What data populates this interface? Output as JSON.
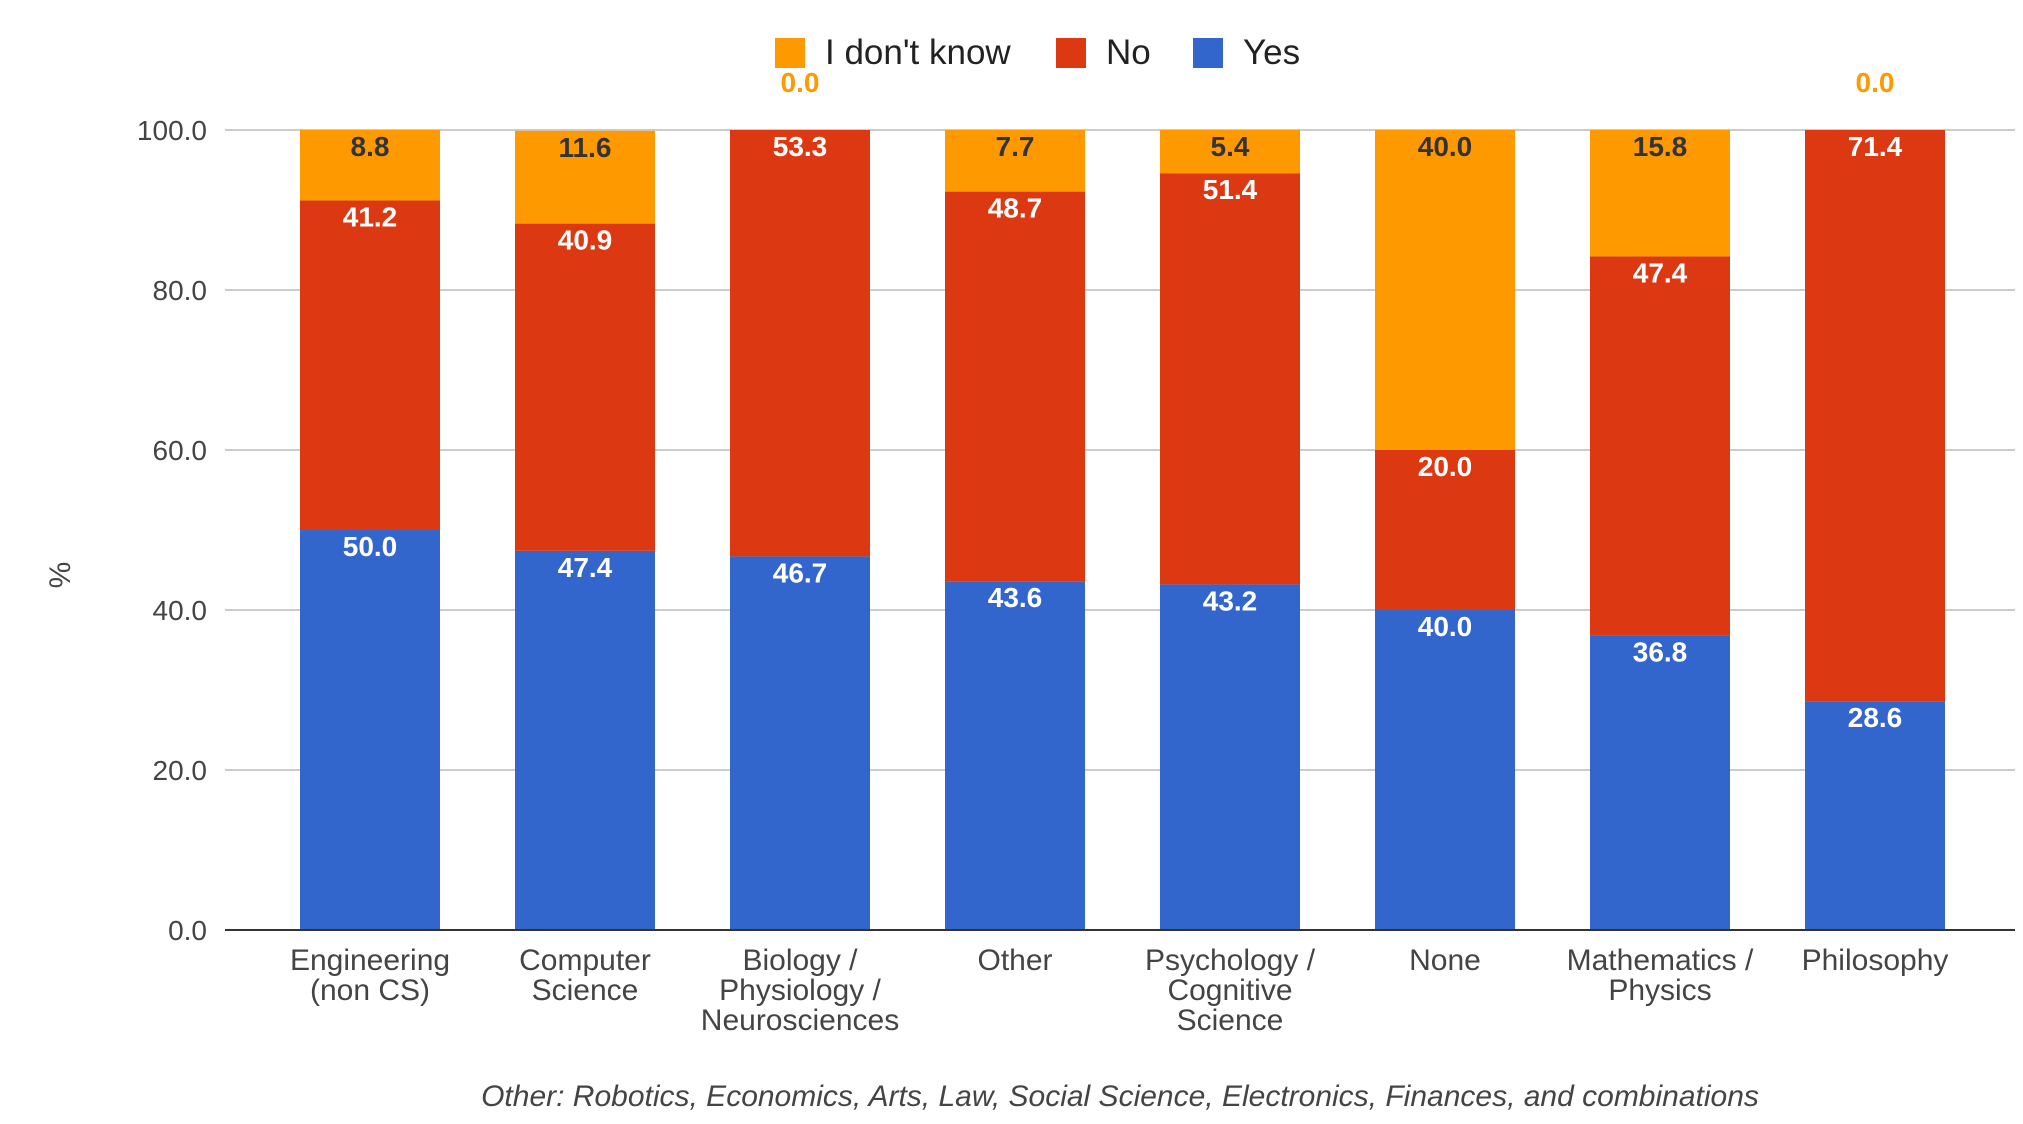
{
  "chart_data": {
    "type": "bar",
    "stacked": true,
    "orientation": "vertical",
    "ylabel": "%",
    "ylim": [
      0,
      100
    ],
    "yticks": [
      "0.0",
      "20.0",
      "40.0",
      "60.0",
      "80.0",
      "100.0"
    ],
    "grid": true,
    "legend_position": "top",
    "categories": [
      [
        "Engineering",
        "(non CS)"
      ],
      [
        "Computer",
        "Science"
      ],
      [
        "Biology /",
        "Physiology /",
        "Neurosciences"
      ],
      [
        "Other"
      ],
      [
        "Psychology /",
        "Cognitive",
        "Science"
      ],
      [
        "None"
      ],
      [
        "Mathematics /",
        "Physics"
      ],
      [
        "Philosophy"
      ]
    ],
    "series": [
      {
        "name": "Yes",
        "color": "#3366cc",
        "label_color": "#ffffff",
        "values": [
          50.0,
          47.4,
          46.7,
          43.6,
          43.2,
          40.0,
          36.8,
          28.6
        ],
        "labels": [
          "50.0",
          "47.4",
          "46.7",
          "43.6",
          "43.2",
          "40.0",
          "36.8",
          "28.6"
        ]
      },
      {
        "name": "No",
        "color": "#dc3912",
        "label_color": "#ffffff",
        "values": [
          41.2,
          40.9,
          53.3,
          48.7,
          51.4,
          20.0,
          47.4,
          71.4
        ],
        "labels": [
          "41.2",
          "40.9",
          "53.3",
          "48.7",
          "51.4",
          "20.0",
          "47.4",
          "71.4"
        ]
      },
      {
        "name": "I don't know",
        "color": "#ff9900",
        "label_color": "#333333",
        "zero_label_color": "#ff9900",
        "values": [
          8.8,
          11.6,
          0.0,
          7.7,
          5.4,
          40.0,
          15.8,
          0.0
        ],
        "labels": [
          "8.8",
          "11.6",
          "0.0",
          "7.7",
          "5.4",
          "40.0",
          "15.8",
          "0.0"
        ]
      }
    ],
    "legend_order": [
      "I don't know",
      "No",
      "Yes"
    ],
    "footnote": "Other: Robotics, Economics, Arts, Law, Social Science, Electronics, Finances, and combinations"
  },
  "colors": {
    "grid": "#cccccc",
    "axis": "#333333",
    "text": "#444444"
  }
}
